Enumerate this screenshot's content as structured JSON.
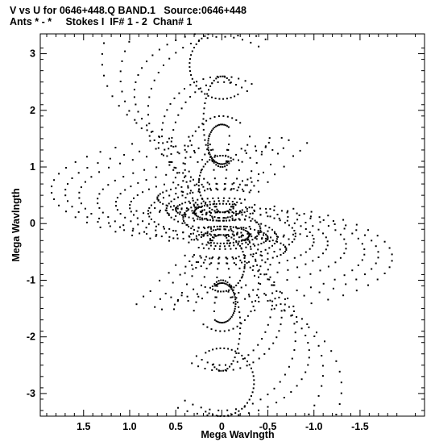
{
  "header": {
    "line1": "V vs U for 0646+448.Q BAND.1   Source:0646+448",
    "line2": "Ants * - *     Stokes I  IF# 1 - 2  Chan# 1"
  },
  "chart_data": {
    "type": "scatter",
    "xlabel": "Mega Wavlngth",
    "ylabel": "Mega Wavlngth",
    "xlim": [
      1.97,
      -2.2
    ],
    "ylim": [
      -3.4,
      3.35
    ],
    "x_reversed": true,
    "x_ticks": [
      1.5,
      1.0,
      0.5,
      0,
      -0.5,
      -1.0,
      -1.5
    ],
    "x_tick_labels": [
      "1.5",
      "1.0",
      "0.5",
      "0",
      "-0.5",
      "-1.0",
      "-1.5"
    ],
    "y_ticks": [
      3,
      2,
      1,
      0,
      -1,
      -2,
      -3
    ],
    "y_tick_labels": [
      "3",
      "2",
      "1",
      "0",
      "-1",
      "-2",
      "-3"
    ],
    "grid": false,
    "marker_color": "#000000",
    "uv_tracks": {
      "description": "uv-coverage tracks; each (u,v) point is mirrored as (-u,-v)",
      "num_samples_per_track": 36,
      "hour_angle_range_deg": [
        -120,
        120
      ],
      "baselines": [
        {
          "a": 0.42,
          "b": 0.3,
          "c": 0.1
        },
        {
          "a": 0.6,
          "b": 0.35,
          "c": 0.25
        },
        {
          "a": 0.8,
          "b": 0.42,
          "c": 0.2
        },
        {
          "a": 1.0,
          "b": 0.5,
          "c": 0.3
        },
        {
          "a": 1.15,
          "b": 0.6,
          "c": 0.35
        },
        {
          "a": 1.35,
          "b": 0.7,
          "c": 0.4
        },
        {
          "a": 1.55,
          "b": 0.8,
          "c": 0.5
        },
        {
          "a": 1.7,
          "b": 0.85,
          "c": 0.55
        },
        {
          "a": 1.85,
          "b": 0.95,
          "c": 0.6
        },
        {
          "a": 0.5,
          "b": 0.2,
          "c": 0.25
        },
        {
          "a": 0.7,
          "b": 0.25,
          "c": 0.45
        },
        {
          "a": 0.3,
          "b": 0.15,
          "c": 0.2
        },
        {
          "a": 0.55,
          "b": 1.2,
          "c": 1.3
        },
        {
          "a": 0.65,
          "b": 1.0,
          "c": 1.6
        },
        {
          "a": 0.8,
          "b": 1.3,
          "c": 2.0
        },
        {
          "a": 0.95,
          "b": 1.1,
          "c": 2.3
        },
        {
          "a": 1.1,
          "b": 1.5,
          "c": 2.6
        },
        {
          "a": 0.4,
          "b": 0.9,
          "c": 1.0
        },
        {
          "a": 0.25,
          "b": 0.5,
          "c": 0.7
        },
        {
          "a": 0.2,
          "b": 0.8,
          "c": 1.8
        },
        {
          "a": 0.35,
          "b": 0.6,
          "c": 2.8
        },
        {
          "a": 1.3,
          "b": 1.6,
          "c": 2.9
        },
        {
          "a": 0.15,
          "b": 0.35,
          "c": 1.4
        }
      ]
    }
  }
}
